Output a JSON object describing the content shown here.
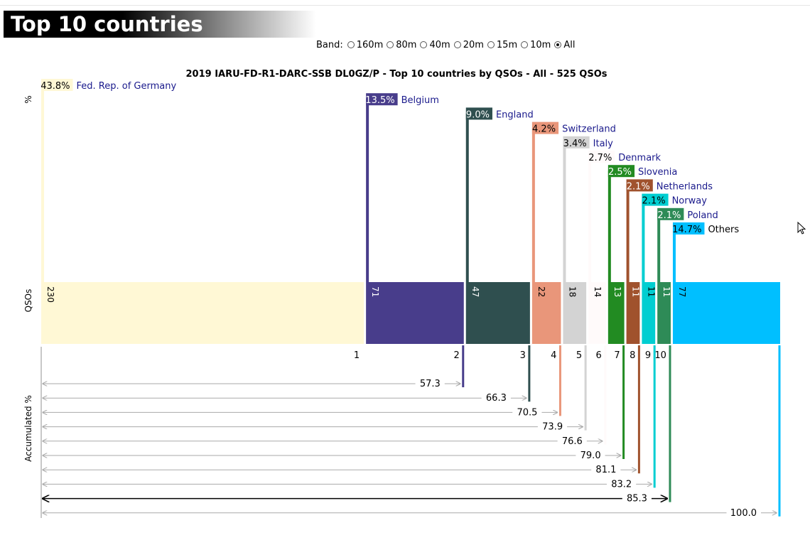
{
  "header": {
    "title": "Top 10 countries"
  },
  "band_selector": {
    "label": "Band:",
    "options": [
      {
        "label": "160m",
        "checked": false
      },
      {
        "label": "80m",
        "checked": false
      },
      {
        "label": "40m",
        "checked": false
      },
      {
        "label": "20m",
        "checked": false
      },
      {
        "label": "15m",
        "checked": false
      },
      {
        "label": "10m",
        "checked": false
      },
      {
        "label": "All",
        "checked": true
      }
    ]
  },
  "chart_data": {
    "type": "bar",
    "title": "2019 IARU-FD-R1-DARC-SSB DL0GZ/P - Top 10 countries by QSOs - All - 525 QSOs",
    "axis_labels": {
      "percent": "%",
      "qsos": "QSOs",
      "accumulated": "Accumulated %"
    },
    "total_qsos": 525,
    "categories": [
      {
        "name": "Fed. Rep. of Germany",
        "rank": "1",
        "qsos": 230,
        "percent": "43.8%",
        "accumulated": "",
        "color": "#fff8d5"
      },
      {
        "name": "Belgium",
        "rank": "2",
        "qsos": 71,
        "percent": "13.5%",
        "accumulated": "57.3",
        "color": "#483d8b"
      },
      {
        "name": "England",
        "rank": "3",
        "qsos": 47,
        "percent": "9.0%",
        "accumulated": "66.3",
        "color": "#2f4f4f"
      },
      {
        "name": "Switzerland",
        "rank": "4",
        "qsos": 22,
        "percent": "4.2%",
        "accumulated": "70.5",
        "color": "#e9967a"
      },
      {
        "name": "Italy",
        "rank": "5",
        "qsos": 18,
        "percent": "3.4%",
        "accumulated": "73.9",
        "color": "#d3d3d3"
      },
      {
        "name": "Denmark",
        "rank": "6",
        "qsos": 14,
        "percent": "2.7%",
        "accumulated": "76.6",
        "color": "#fffafa"
      },
      {
        "name": "Slovenia",
        "rank": "7",
        "qsos": 13,
        "percent": "2.5%",
        "accumulated": "79.0",
        "color": "#228b22"
      },
      {
        "name": "Netherlands",
        "rank": "8",
        "qsos": 11,
        "percent": "2.1%",
        "accumulated": "81.1",
        "color": "#a0522d"
      },
      {
        "name": "Norway",
        "rank": "9",
        "qsos": 11,
        "percent": "2.1%",
        "accumulated": "83.2",
        "color": "#00ced1"
      },
      {
        "name": "Poland",
        "rank": "10",
        "qsos": 11,
        "percent": "2.1%",
        "accumulated": "85.3",
        "color": "#2e8b57"
      },
      {
        "name": "Others",
        "rank": "",
        "qsos": 77,
        "percent": "14.7%",
        "accumulated": "100.0",
        "color": "#00bfff"
      }
    ],
    "highlighted_accumulated": "85.3",
    "grid": false
  }
}
